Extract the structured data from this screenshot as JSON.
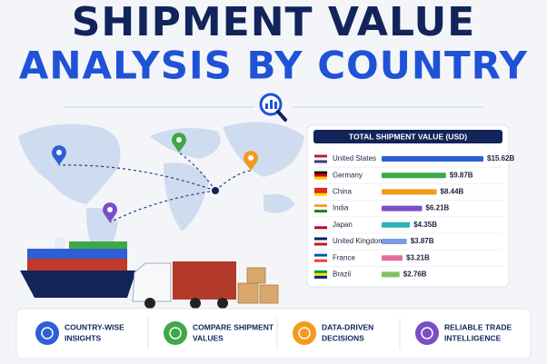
{
  "header": {
    "title_lines": [
      "SHIPMENT VALUE",
      "ANALYSIS BY COUNTRY"
    ]
  },
  "chart_data": {
    "type": "bar",
    "orientation": "horizontal",
    "title": "TOTAL SHIPMENT VALUE (USD)",
    "categories": [
      "United States",
      "Germany",
      "China",
      "India",
      "Japan",
      "United Kingdom",
      "France",
      "Brazil"
    ],
    "values": [
      15.62,
      9.87,
      8.44,
      6.21,
      4.35,
      3.87,
      3.21,
      2.76
    ],
    "value_labels": [
      "$15.62B",
      "$9.87B",
      "$8.44B",
      "$6.21B",
      "$4.35B",
      "$3.87B",
      "$3.21B",
      "$2.76B"
    ],
    "colors": [
      "#2d5fd6",
      "#3ea846",
      "#f39a1e",
      "#7b4fc4",
      "#2bb3b8",
      "#7d9be0",
      "#e46a9b",
      "#7fc45f"
    ]
  },
  "features": [
    {
      "lines": [
        "COUNTRY-WISE",
        "INSIGHTS"
      ]
    },
    {
      "lines": [
        "COMPARE SHIPMENT",
        "VALUES"
      ]
    },
    {
      "lines": [
        "DATA-DRIVEN",
        "DECISIONS"
      ]
    },
    {
      "lines": [
        "RELIABLE TRADE",
        "INTELLIGENCE"
      ]
    }
  ]
}
